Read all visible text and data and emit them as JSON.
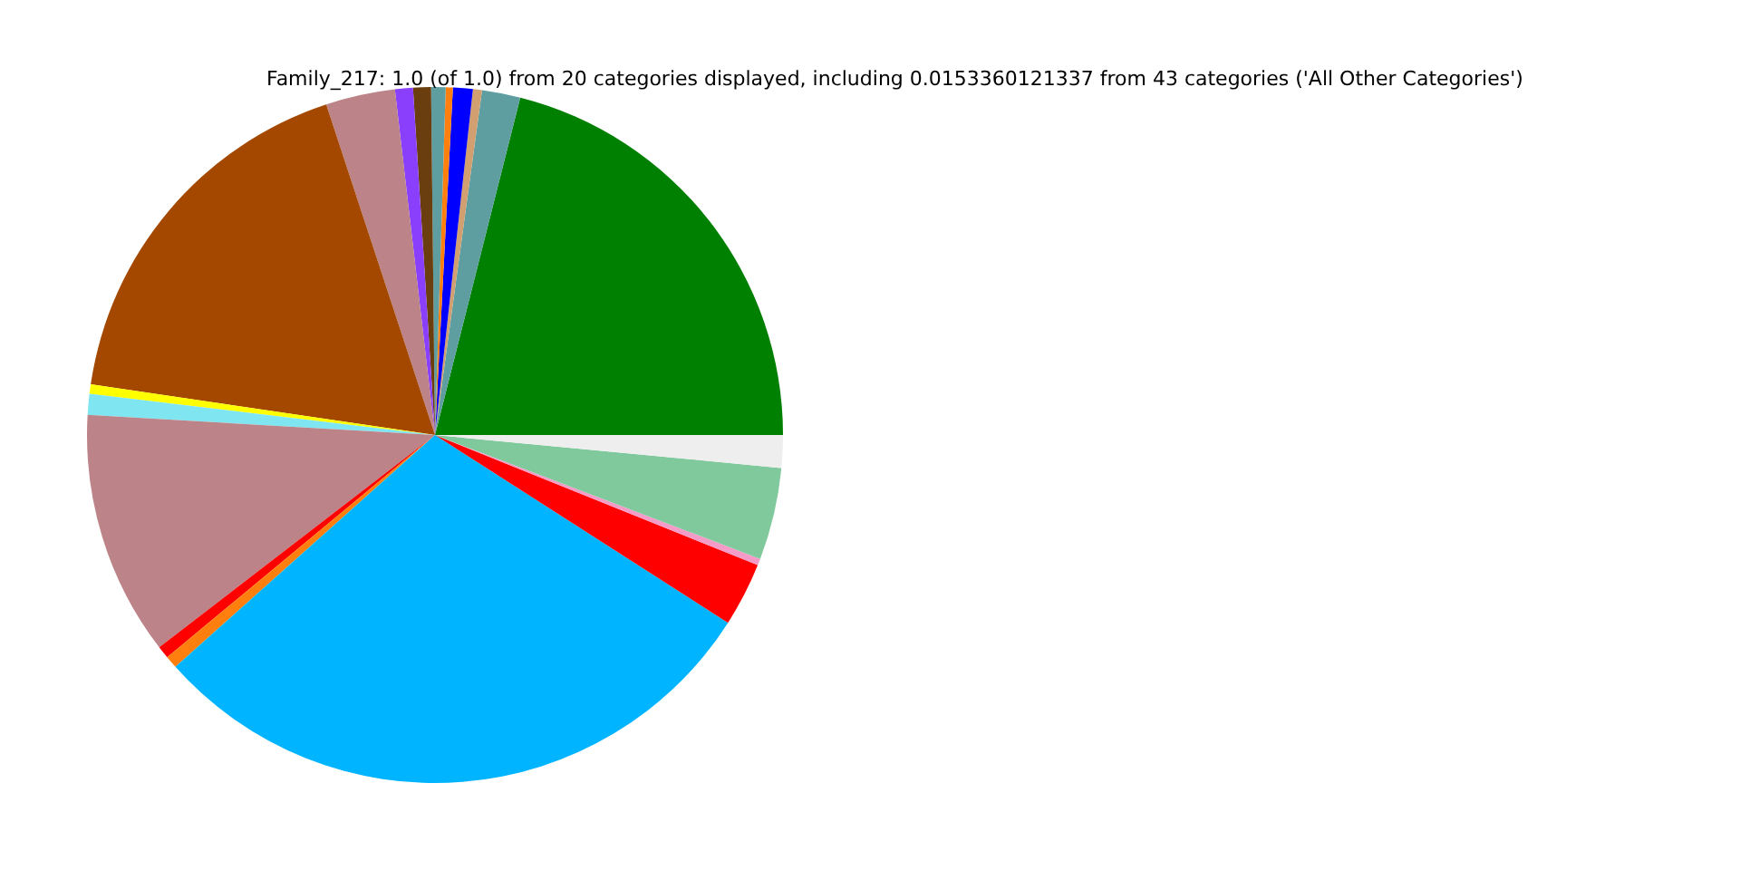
{
  "chart_data": {
    "type": "pie",
    "title": "Family_217: 1.0 (of 1.0) from 20 categories displayed, including 0.0153360121337 from 43 categories ('All Other Categories')",
    "categories": [
      null,
      null,
      null,
      null,
      null,
      null,
      null,
      null,
      null,
      null,
      null,
      null,
      null,
      null,
      null,
      null,
      null,
      null,
      null,
      null
    ],
    "values": [
      21.06,
      1.78,
      0.42,
      0.92,
      0.33,
      0.67,
      0.83,
      0.83,
      3.22,
      17.61,
      0.44,
      0.97,
      11.36,
      0.58,
      0.58,
      29.33,
      2.97,
      0.31,
      4.28,
      1.51
    ],
    "colors": [
      "#008000",
      "#5f9ea0",
      "#d2a070",
      "#0000ff",
      "#ff7f0e",
      "#5f9ea0",
      "#6b3e0f",
      "#8a3ffc",
      "#bc8489",
      "#a44800",
      "#ffff00",
      "#7fe5f0",
      "#bc8489",
      "#ff0000",
      "#ff7f0e",
      "#00b4ff",
      "#ff0000",
      "#f59bc8",
      "#80c99c",
      "#eeeeee"
    ]
  }
}
